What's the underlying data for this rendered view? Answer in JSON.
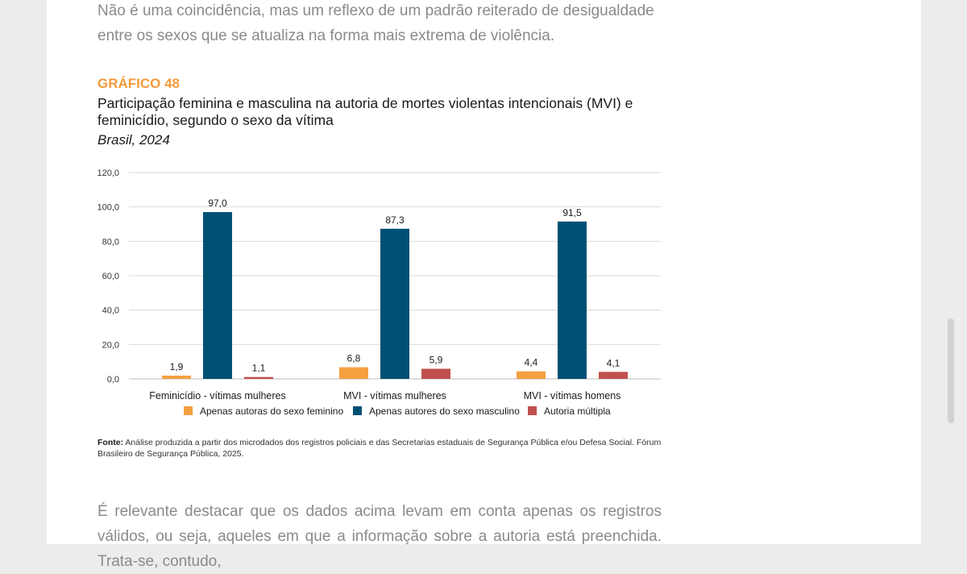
{
  "text": {
    "intro_paragraph": "Não é uma coincidência, mas um reflexo de um padrão reiterado de desigualdade entre os sexos que se atualiza na forma mais extrema de violência.",
    "chart_label": "GRÁFICO 48",
    "source_label": "Fonte:",
    "source_text": "Análise produzida a partir dos microdados dos registros policiais e das Secretarias estaduais de Segurança Pública e/ou Defesa Social. Fórum Brasileiro de Segurança Pública, 2025.",
    "closing_paragraph": "É relevante destacar que os dados acima levam em conta apenas os registros válidos, ou seja, aqueles em que a informação sobre a autoria está preenchida. Trata-se, contudo,"
  },
  "chart_data": {
    "type": "bar",
    "title": "Participação feminina e masculina na autoria de mortes violentas intencionais (MVI) e feminicídio, segundo o sexo da vítima",
    "subtitle": "Brasil, 2024",
    "categories": [
      "Feminicídio - vítimas mulheres",
      "MVI - vítimas mulheres",
      "MVI - vítimas homens"
    ],
    "series": [
      {
        "name": "Apenas autoras do sexo feminino",
        "color": "#f5a040",
        "values": [
          1.9,
          6.8,
          4.4
        ],
        "labels": [
          "1,9",
          "6,8",
          "4,4"
        ]
      },
      {
        "name": "Apenas autores do sexo masculino",
        "color": "#005073",
        "values": [
          97.0,
          87.3,
          91.5
        ],
        "labels": [
          "97,0",
          "87,3",
          "91,5"
        ]
      },
      {
        "name": "Autoria múltipla",
        "color": "#c0504d",
        "values": [
          1.1,
          5.9,
          4.1
        ],
        "labels": [
          "1,1",
          "5,9",
          "4,1"
        ]
      }
    ],
    "ylim": [
      0,
      120
    ],
    "yticks": [
      0,
      20,
      40,
      60,
      80,
      100,
      120
    ],
    "ytick_labels": [
      "0,0",
      "20,0",
      "40,0",
      "60,0",
      "80,0",
      "100,0",
      "120,0"
    ],
    "xlabel": "",
    "ylabel": "",
    "grid": true,
    "legend_position": "bottom"
  }
}
